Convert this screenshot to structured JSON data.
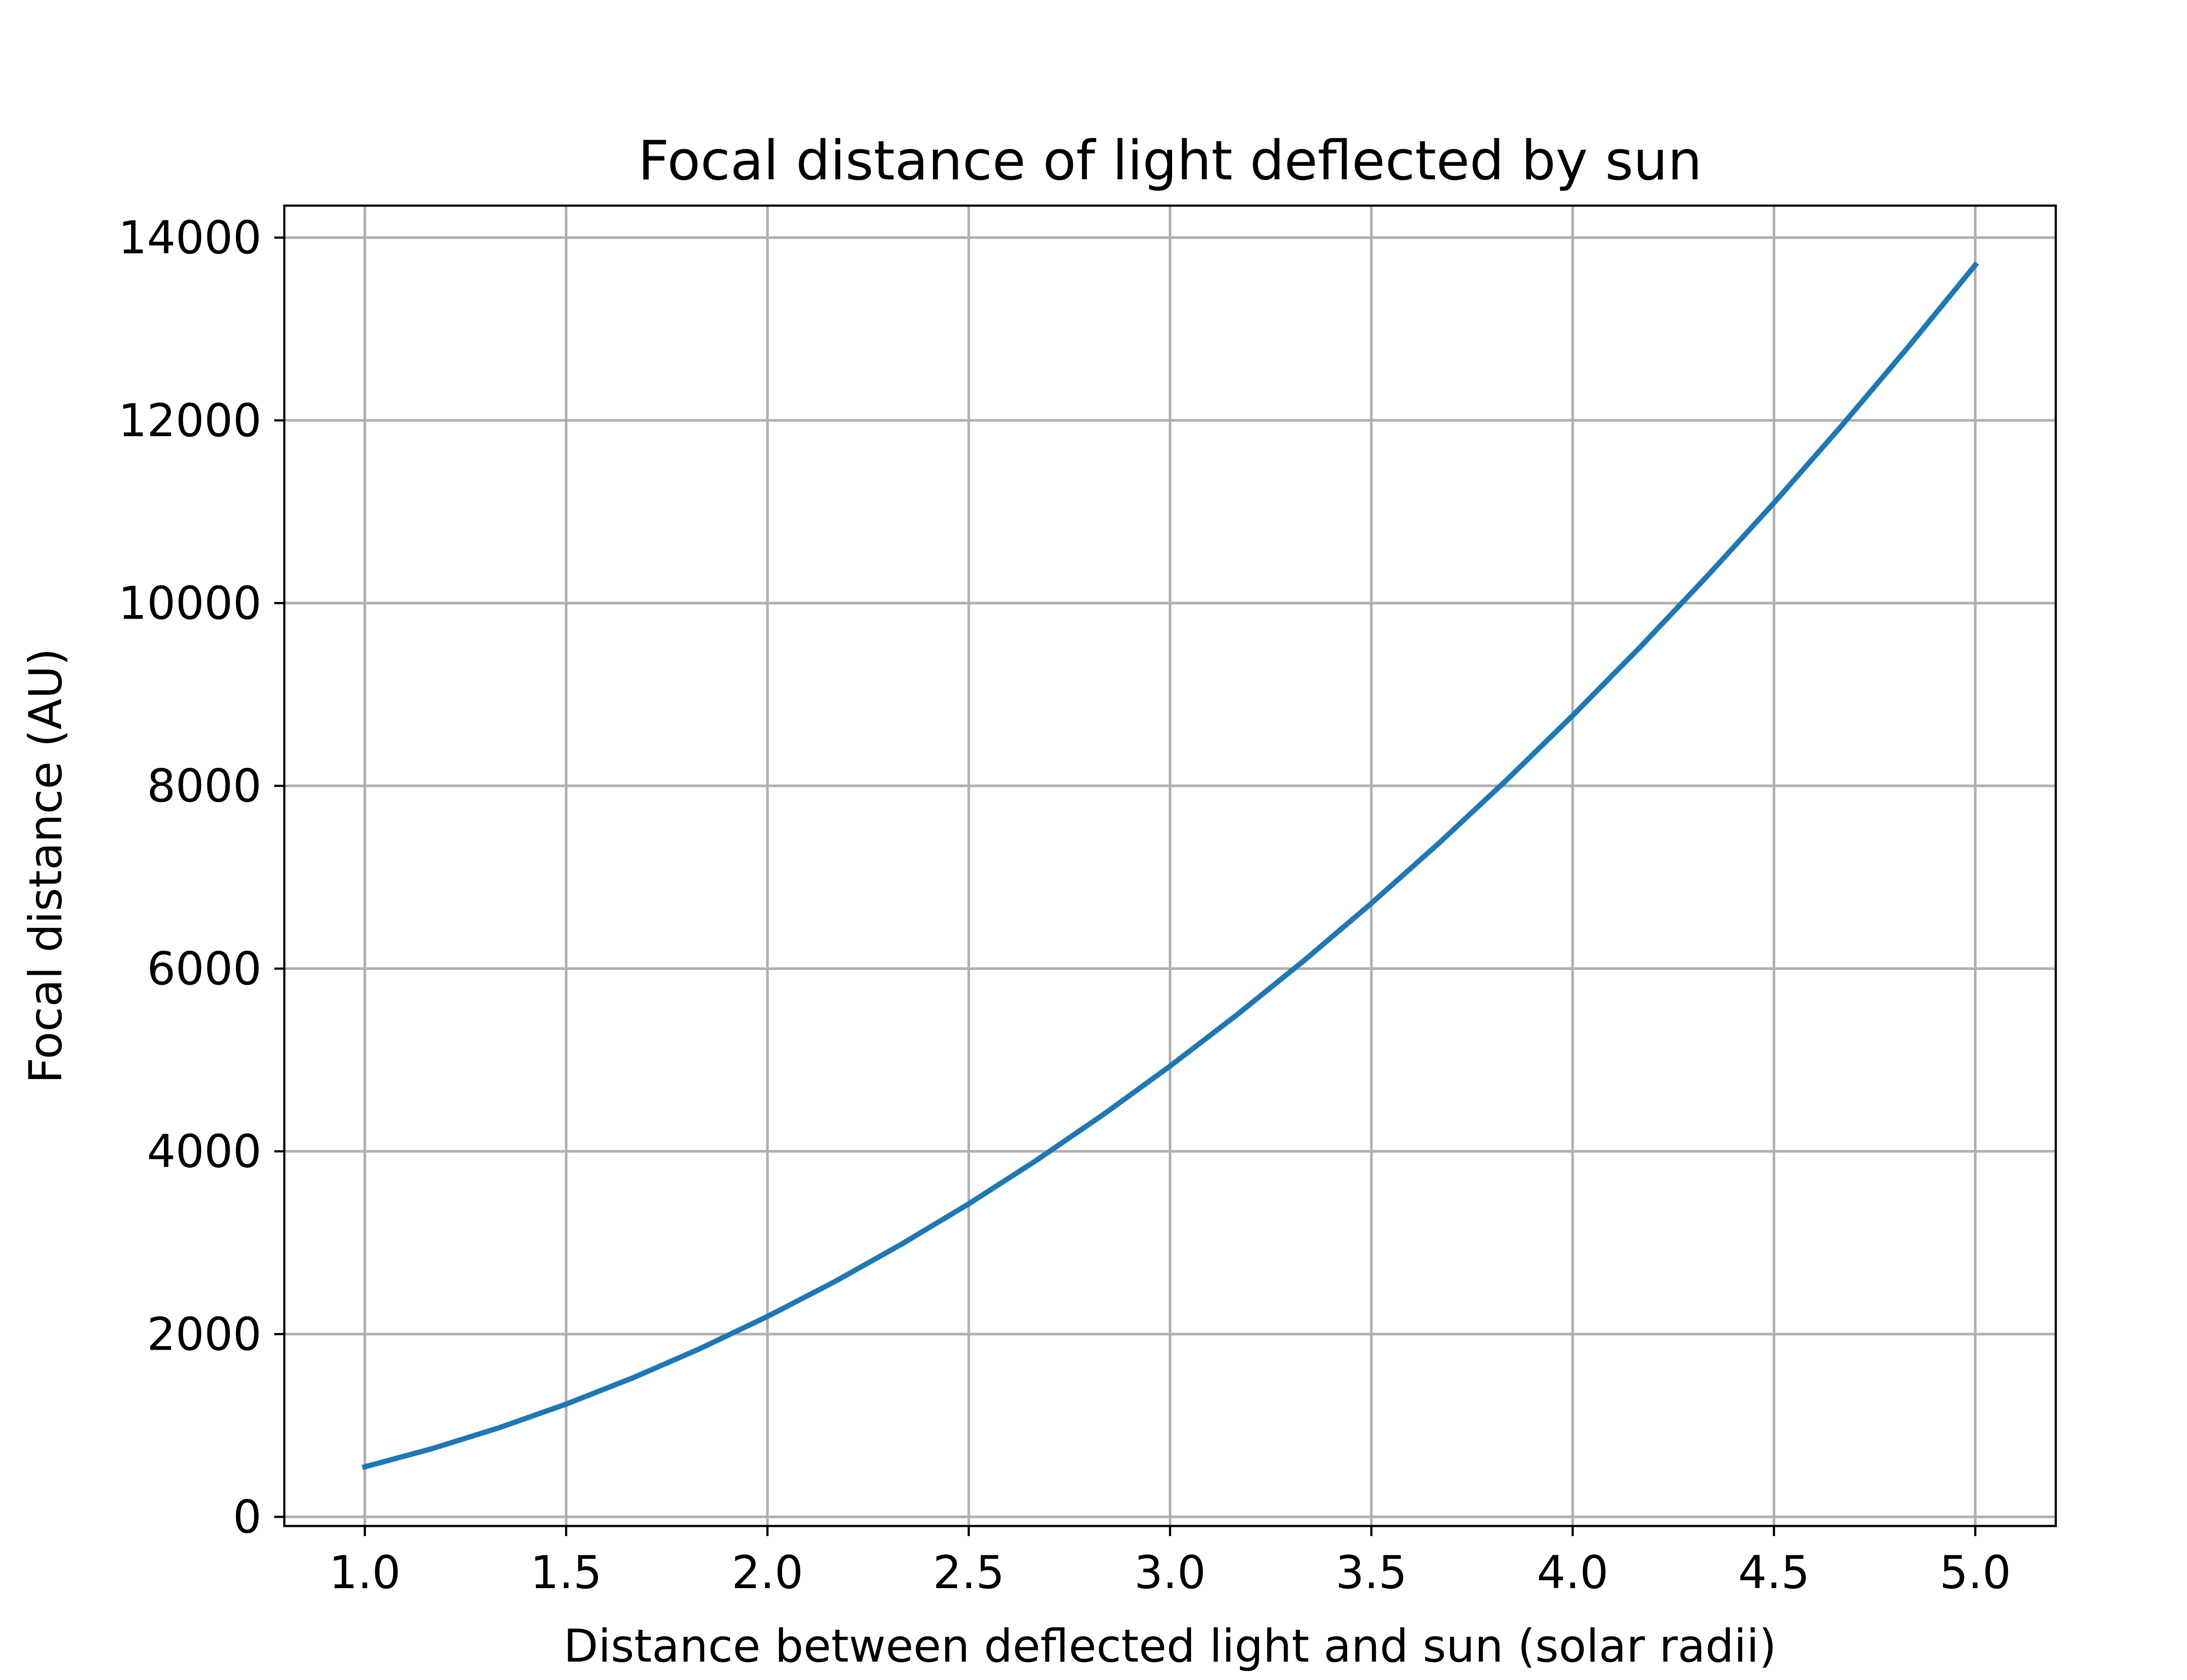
{
  "chart_data": {
    "type": "line",
    "title": "Focal distance of light deflected by sun",
    "xlabel": "Distance between deflected light and sun (solar radii)",
    "ylabel": "Focal distance (AU)",
    "xlim": [
      0.8,
      5.2
    ],
    "ylim": [
      -100,
      14350
    ],
    "x_ticks": [
      1.0,
      1.5,
      2.0,
      2.5,
      3.0,
      3.5,
      4.0,
      4.5,
      5.0
    ],
    "x_tick_labels": [
      "1.0",
      "1.5",
      "2.0",
      "2.5",
      "3.0",
      "3.5",
      "4.0",
      "4.5",
      "5.0"
    ],
    "y_ticks": [
      0,
      2000,
      4000,
      6000,
      8000,
      10000,
      12000,
      14000
    ],
    "y_tick_labels": [
      "0",
      "2000",
      "4000",
      "6000",
      "8000",
      "10000",
      "12000",
      "14000"
    ],
    "grid": true,
    "series": [
      {
        "color": "#1f77b4",
        "x": [
          1.0,
          1.1667,
          1.3333,
          1.5,
          1.6667,
          1.8333,
          2.0,
          2.1667,
          2.3333,
          2.5,
          2.6667,
          2.8333,
          3.0,
          3.1667,
          3.3333,
          3.5,
          3.6667,
          3.8333,
          4.0,
          4.1667,
          4.3333,
          4.5,
          4.6667,
          4.8333,
          5.0
        ],
        "y": [
          548,
          746,
          975,
          1234,
          1523,
          1843,
          2193,
          2573,
          2985,
          3426,
          3898,
          4400,
          4933,
          5496,
          6090,
          6714,
          7368,
          8053,
          8769,
          9514,
          10291,
          11097,
          11934,
          12802,
          13700
        ]
      }
    ]
  }
}
